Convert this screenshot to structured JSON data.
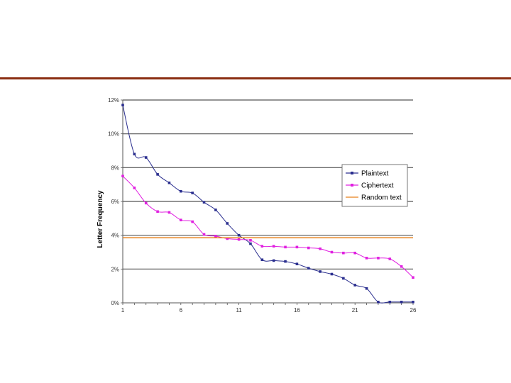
{
  "slide": {
    "rule_color": "#8b2e12"
  },
  "chart_data": {
    "type": "line",
    "title": "",
    "xlabel": "",
    "ylabel": "Letter Frequency",
    "x": [
      1,
      2,
      3,
      4,
      5,
      6,
      7,
      8,
      9,
      10,
      11,
      12,
      13,
      14,
      15,
      16,
      17,
      18,
      19,
      20,
      21,
      22,
      23,
      24,
      25,
      26
    ],
    "xticks": [
      1,
      6,
      11,
      16,
      21,
      26
    ],
    "xlim": [
      1,
      26
    ],
    "ylim": [
      0,
      12
    ],
    "yticks": [
      0,
      2,
      4,
      6,
      8,
      10,
      12
    ],
    "ytick_labels": [
      "0%",
      "2%",
      "4%",
      "6%",
      "8%",
      "10%",
      "12%"
    ],
    "grid": true,
    "legend_position": "right",
    "series": [
      {
        "name": "Plaintext",
        "color": "#2b2f8f",
        "marker": "diamond",
        "values": [
          11.7,
          8.8,
          8.6,
          7.6,
          7.1,
          6.6,
          6.5,
          5.95,
          5.5,
          4.7,
          4.0,
          3.5,
          2.55,
          2.5,
          2.45,
          2.3,
          2.05,
          1.85,
          1.7,
          1.45,
          1.05,
          0.85,
          0.05,
          0.05,
          0.05,
          0.05
        ]
      },
      {
        "name": "Ciphertext",
        "color": "#e020e0",
        "marker": "square",
        "values": [
          7.5,
          6.8,
          5.9,
          5.4,
          5.35,
          4.9,
          4.8,
          4.05,
          3.95,
          3.8,
          3.75,
          3.7,
          3.35,
          3.35,
          3.3,
          3.3,
          3.25,
          3.2,
          3.0,
          2.95,
          2.95,
          2.65,
          2.65,
          2.6,
          2.15,
          1.5
        ]
      },
      {
        "name": "Random text",
        "color": "#e8801a",
        "marker": "none",
        "values": [
          3.85,
          3.85,
          3.85,
          3.85,
          3.85,
          3.85,
          3.85,
          3.85,
          3.85,
          3.85,
          3.85,
          3.85,
          3.85,
          3.85,
          3.85,
          3.85,
          3.85,
          3.85,
          3.85,
          3.85,
          3.85,
          3.85,
          3.85,
          3.85,
          3.85,
          3.85
        ]
      }
    ]
  }
}
